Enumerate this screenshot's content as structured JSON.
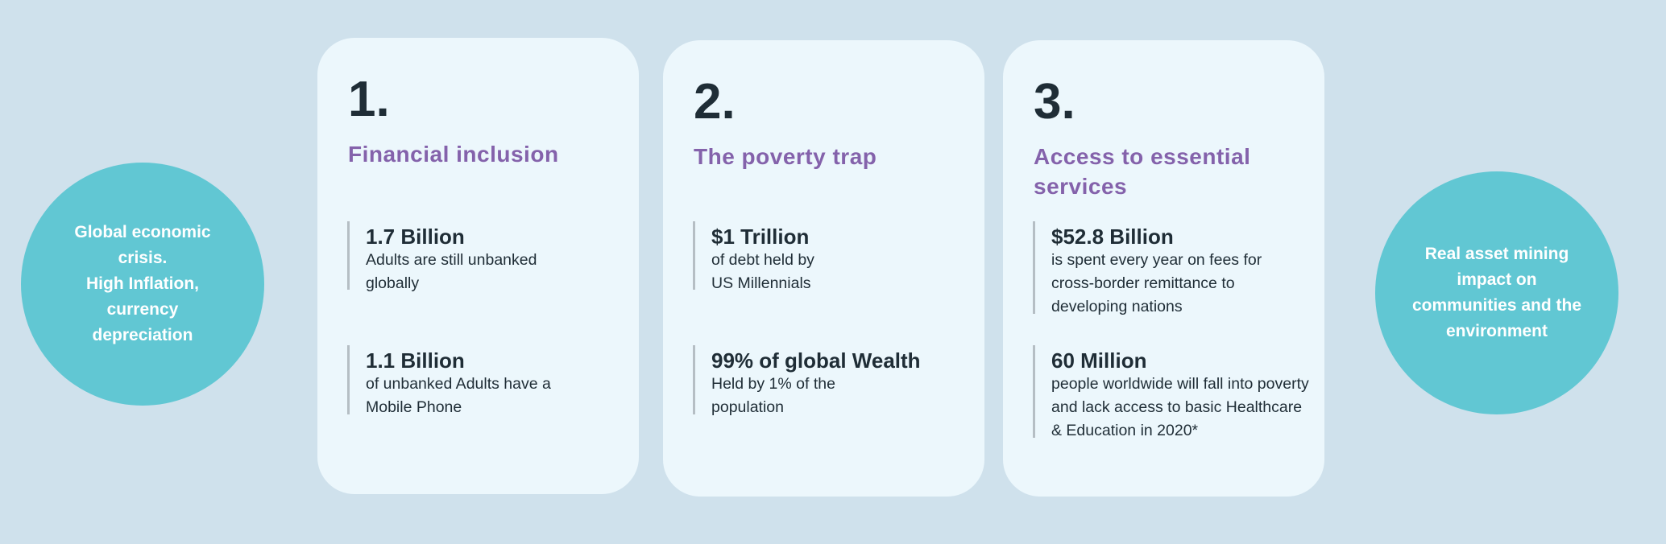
{
  "colors": {
    "background": "#cfe1ec",
    "card": "#ecf7fc",
    "circle": "#61c7d3",
    "heading": "#8462ab",
    "text": "#1f2d36"
  },
  "left_circle": {
    "text": "Global economic\ncrisis.\nHigh Inflation,\ncurrency\ndepreciation"
  },
  "right_circle": {
    "text": "Real asset  mining\nimpact on\ncommunities and the\nenvironment"
  },
  "cards": [
    {
      "number": "1.",
      "heading": "Financial inclusion",
      "stats": [
        {
          "title": "1.7 Billion",
          "body": "Adults are still unbanked globally"
        },
        {
          "title": "1.1 Billion",
          "body": "of unbanked Adults have a Mobile Phone"
        }
      ]
    },
    {
      "number": "2.",
      "heading": "The poverty trap",
      "stats": [
        {
          "title": "$1 Trillion",
          "body": "of debt held by\nUS Millennials"
        },
        {
          "title": "99% of global Wealth",
          "body": "Held by 1% of the population"
        }
      ]
    },
    {
      "number": "3.",
      "heading": "Access to essential services",
      "stats": [
        {
          "title": "$52.8 Billion",
          "body": "is spent every year on fees for cross-border remittance to developing nations"
        },
        {
          "title": "60 Million",
          "body": "people worldwide will fall into poverty and lack access to basic Healthcare & Education in 2020*"
        }
      ]
    }
  ]
}
